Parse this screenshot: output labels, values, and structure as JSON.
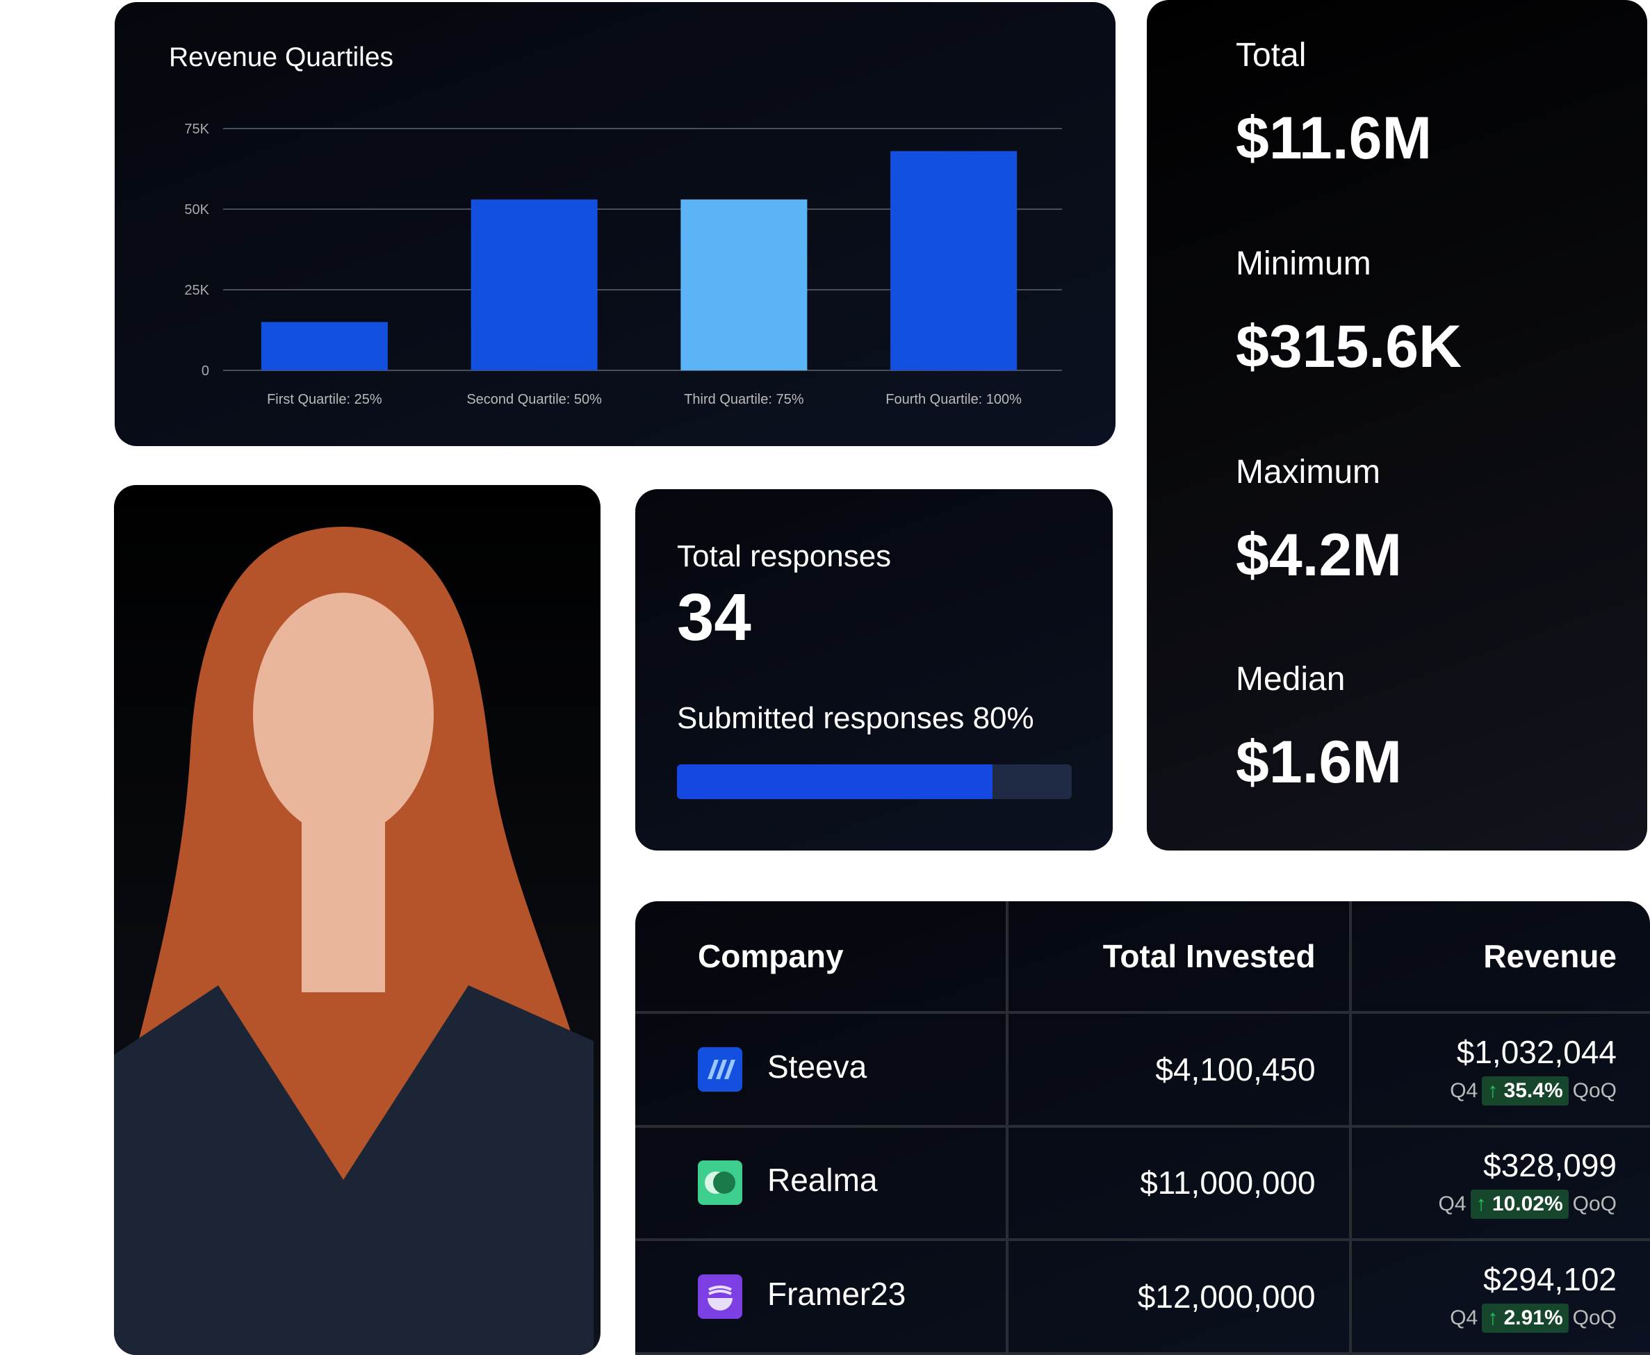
{
  "chart_data": {
    "type": "bar",
    "title": "Revenue Quartiles",
    "categories": [
      "First Quartile: 25%",
      "Second Quartile: 50%",
      "Third Quartile: 75%",
      "Fourth Quartile: 100%"
    ],
    "values": [
      15000,
      53000,
      53000,
      68000
    ],
    "yticks": [
      "0",
      "25K",
      "50K",
      "75K"
    ],
    "ylim": [
      0,
      75000
    ],
    "grid": true,
    "colors": [
      "#1450e0",
      "#1450e0",
      "#5bb4f5",
      "#1450e0"
    ]
  },
  "stats": [
    {
      "label": "Total",
      "value": "$11.6M"
    },
    {
      "label": "Minimum",
      "value": "$315.6K"
    },
    {
      "label": "Maximum",
      "value": "$4.2M"
    },
    {
      "label": "Median",
      "value": "$1.6M"
    }
  ],
  "responses": {
    "title": "Total responses",
    "count": "34",
    "submitted_label": "Submitted responses 80%",
    "progress": 0.8
  },
  "table": {
    "headers": [
      "Company",
      "Total Invested",
      "Revenue"
    ],
    "rows": [
      {
        "company": "Steeva",
        "invested": "$4,100,450",
        "revenue": "$1,032,044",
        "quarter": "Q4",
        "change": "35.4%",
        "period": "QoQ",
        "logo_color": "#1450e0"
      },
      {
        "company": "Realma",
        "invested": "$11,000,000",
        "revenue": "$328,099",
        "quarter": "Q4",
        "change": "10.02%",
        "period": "QoQ",
        "logo_color": "#3ecf8e"
      },
      {
        "company": "Framer23",
        "invested": "$12,000,000",
        "revenue": "$294,102",
        "quarter": "Q4",
        "change": "2.91%",
        "period": "QoQ",
        "logo_color": "#7b3fe4"
      }
    ]
  }
}
